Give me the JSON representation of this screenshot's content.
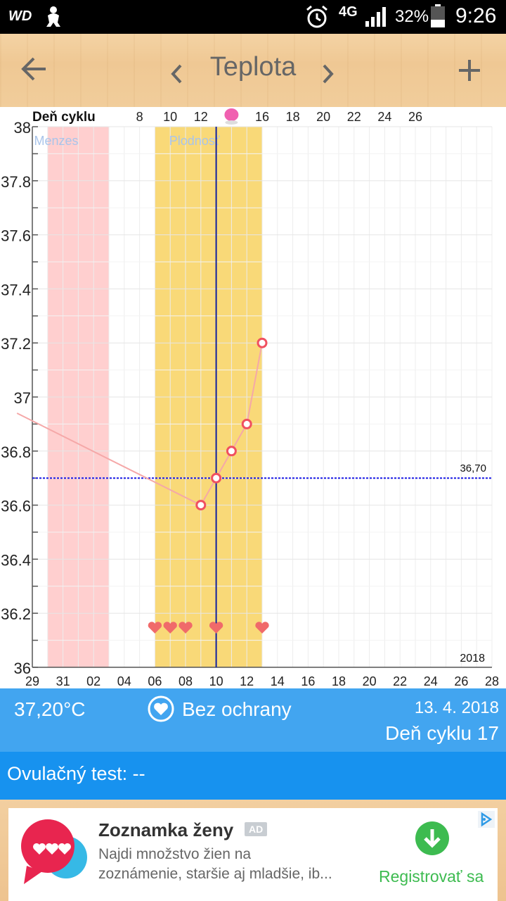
{
  "status_bar": {
    "carrier": "WD",
    "network": "4G",
    "battery": "32%",
    "time": "9:26",
    "icons": [
      "wd-icon",
      "baby-icon",
      "alarm-icon",
      "network-4g-icon",
      "signal-icon",
      "battery-icon"
    ]
  },
  "app_bar": {
    "title": "Teplota",
    "back_icon": "arrow-left-icon",
    "prev_icon": "chevron-left-icon",
    "next_icon": "chevron-right-icon",
    "add_icon": "plus-icon"
  },
  "chart_data": {
    "type": "line",
    "top_axis_label": "Deň cyklu",
    "top_ticks": [
      {
        "day": 8,
        "label": "8"
      },
      {
        "day": 10,
        "label": "10"
      },
      {
        "day": 12,
        "label": "12"
      },
      {
        "day": 14,
        "label": "",
        "marker": "ovulation-dot"
      },
      {
        "day": 16,
        "label": "16"
      },
      {
        "day": 18,
        "label": "18"
      },
      {
        "day": 20,
        "label": "20"
      },
      {
        "day": 22,
        "label": "22"
      },
      {
        "day": 24,
        "label": "24"
      },
      {
        "day": 26,
        "label": "26"
      }
    ],
    "x_ticks": [
      "29",
      "31",
      "02",
      "04",
      "06",
      "08",
      "10",
      "12",
      "14",
      "16",
      "18",
      "20",
      "22",
      "24",
      "26",
      "28"
    ],
    "y_ticks": [
      "36",
      "36.2",
      "36.4",
      "36.6",
      "36.8",
      "37",
      "37.2",
      "37.4",
      "37.6",
      "37.8",
      "38"
    ],
    "ylim": [
      36,
      38
    ],
    "year_label": "2018",
    "regions": [
      {
        "label": "Menzes",
        "from_day": 1,
        "to_day": 5,
        "color": "#ffcfcf",
        "label_color": "#a9c4ea"
      },
      {
        "label": "Plodnosť",
        "from_day": 8,
        "to_day": 15,
        "color": "#f9d978",
        "label_color": "#a9c4ea"
      }
    ],
    "today_day": 13,
    "coverline": {
      "value": 36.7,
      "label": "36,70",
      "color": "#1a1ae6"
    },
    "series": [
      {
        "color": "#f5a8a8",
        "points": [
          {
            "day": 0,
            "value": 36.94,
            "marker": false
          },
          {
            "day": 12,
            "value": 36.6,
            "marker": true
          },
          {
            "day": 13,
            "value": 36.7,
            "marker": true
          },
          {
            "day": 14,
            "value": 36.8,
            "marker": true
          },
          {
            "day": 15,
            "value": 36.9,
            "marker": true
          },
          {
            "day": 16,
            "value": 37.2,
            "marker": true
          }
        ]
      }
    ],
    "hearts_days": [
      9,
      10,
      11,
      13,
      16
    ],
    "colors": {
      "heart": "#f06a6a",
      "marker": "#f05060",
      "today_line": "#1020a0",
      "ovulation": "#f060b0"
    }
  },
  "info_bar": {
    "temperature": "37,20°C",
    "protection": "Bez ochrany",
    "protection_icon": "heart-circle-icon",
    "date": "13. 4. 2018",
    "cycle_day": "Deň cyklu 17"
  },
  "ovulation_test": {
    "text": "Ovulačný test: --"
  },
  "ad": {
    "title": "Zoznamka ženy",
    "badge": "AD",
    "line1": "Najdi množstvo žien na",
    "line2": "zoznámenie, staršie aj mladšie, ib...",
    "cta": "Registrovať sa",
    "logo_icon": "chat-hearts-icon",
    "cta_icon": "download-arrow-icon",
    "adchoices_icon": "adchoices-icon"
  }
}
